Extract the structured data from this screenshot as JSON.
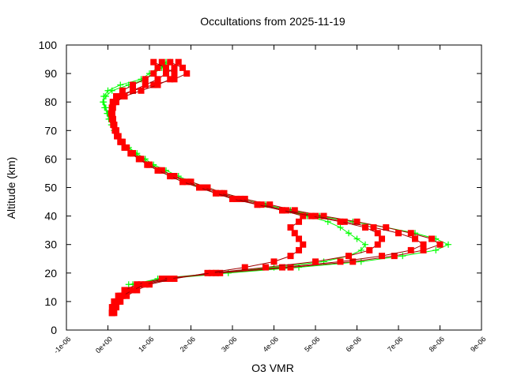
{
  "chart_data": {
    "type": "line",
    "title": "Occultations from 2025-11-19",
    "xlabel": "O3 VMR",
    "ylabel": "Altitude (km)",
    "xlim": [
      -1e-06,
      9e-06
    ],
    "ylim": [
      0,
      100
    ],
    "xticks": [
      "-1e-06",
      "0e+00",
      "1e-06",
      "2e-06",
      "3e-06",
      "4e-06",
      "5e-06",
      "6e-06",
      "7e-06",
      "8e-06",
      "9e-06"
    ],
    "yticks": [
      "0",
      "10",
      "20",
      "30",
      "40",
      "50",
      "60",
      "70",
      "80",
      "90",
      "100"
    ],
    "grid": false,
    "legend": "none",
    "altitude": [
      6,
      8,
      10,
      12,
      14,
      16,
      18,
      20,
      22,
      24,
      26,
      28,
      30,
      32,
      34,
      36,
      38,
      40,
      42,
      44,
      46,
      48,
      50,
      52,
      54,
      56,
      58,
      60,
      62,
      64,
      66,
      68,
      70,
      72,
      74,
      76,
      78,
      80,
      82,
      84,
      86,
      88,
      90,
      92,
      94
    ],
    "series": [
      {
        "color": "#00ff00",
        "marker": "plus",
        "profiles": [
          [
            null,
            null,
            null,
            null,
            null,
            5e-07,
            1.4e-06,
            2.9e-06,
            4.6e-06,
            6.1e-06,
            7.1e-06,
            7.9e-06,
            8.2e-06,
            7.9e-06,
            7.4e-06,
            6.7e-06,
            5.9e-06,
            5.1e-06,
            4.4e-06,
            3.8e-06,
            3.3e-06,
            2.8e-06,
            2.4e-06,
            2e-06,
            1.7e-06,
            1.4e-06,
            1.1e-06,
            9e-07,
            7e-07,
            5e-07,
            3.5e-07,
            2.5e-07,
            1.8e-07,
            1e-07,
            5e-08,
            0.0,
            -5e-08,
            -1e-07,
            -1e-07,
            0.0,
            3e-07,
            8e-07,
            1e-06,
            1.2e-06,
            1.5e-06
          ],
          [
            null,
            null,
            null,
            null,
            null,
            6e-07,
            1.2e-06,
            2.6e-06,
            4e-06,
            5.2e-06,
            5.8e-06,
            6.1e-06,
            6.2e-06,
            6e-06,
            5.8e-06,
            5.6e-06,
            5.3e-06,
            4.8e-06,
            4.2e-06,
            3.6e-06,
            3.1e-06,
            2.6e-06,
            2.2e-06,
            1.9e-06,
            1.6e-06,
            1.3e-06,
            1.05e-06,
            8.5e-07,
            6.5e-07,
            5e-07,
            3.5e-07,
            2.5e-07,
            1.5e-07,
            8e-08,
            2e-08,
            -2e-08,
            -8e-08,
            -1.2e-07,
            -5e-08,
            1e-07,
            5e-07,
            9e-07,
            1.1e-06,
            1.3e-06,
            1.4e-06
          ]
        ]
      },
      {
        "color": "#ff0000",
        "marker": "square",
        "profiles": [
          [
            1e-07,
            1.2e-07,
            2e-07,
            3e-07,
            5e-07,
            8e-07,
            1.4e-06,
            2.7e-06,
            4.4e-06,
            5.9e-06,
            6.9e-06,
            7.6e-06,
            8e-06,
            7.8e-06,
            7.3e-06,
            6.7e-06,
            6e-06,
            5.2e-06,
            4.5e-06,
            3.9e-06,
            3.3e-06,
            2.8e-06,
            2.4e-06,
            2e-06,
            1.6e-06,
            1.3e-06,
            1e-06,
            8e-07,
            6e-07,
            4.5e-07,
            3.5e-07,
            2.5e-07,
            2e-07,
            1.5e-07,
            1.2e-07,
            1e-07,
            1e-07,
            1.2e-07,
            2e-07,
            6e-07,
            1.1e-06,
            1.6e-06,
            1.9e-06,
            1.8e-06,
            1.5e-06
          ],
          [
            1e-07,
            1e-07,
            1.5e-07,
            2.5e-07,
            4e-07,
            7e-07,
            1.3e-06,
            2.6e-06,
            4.2e-06,
            5.6e-06,
            6.6e-06,
            7.3e-06,
            7.6e-06,
            7.4e-06,
            7e-06,
            6.4e-06,
            5.7e-06,
            5e-06,
            4.3e-06,
            3.7e-06,
            3.2e-06,
            2.7e-06,
            2.3e-06,
            1.9e-06,
            1.6e-06,
            1.3e-06,
            1e-06,
            8e-07,
            6e-07,
            4.5e-07,
            3.5e-07,
            2.5e-07,
            2e-07,
            1.5e-07,
            1.2e-07,
            1e-07,
            1e-07,
            1.2e-07,
            2e-07,
            3.5e-07,
            6e-07,
            9e-07,
            1.1e-06,
            1.2e-06,
            1.3e-06
          ],
          [
            1.5e-07,
            2e-07,
            3e-07,
            4.5e-07,
            7e-07,
            1e-06,
            1.6e-06,
            2.4e-06,
            3.3e-06,
            4e-06,
            4.4e-06,
            4.6e-06,
            4.7e-06,
            4.6e-06,
            4.5e-06,
            4.4e-06,
            4.6e-06,
            4.7e-06,
            4.2e-06,
            3.6e-06,
            3.1e-06,
            2.6e-06,
            2.2e-06,
            1.8e-06,
            1.5e-06,
            1.2e-06,
            9.5e-07,
            7.5e-07,
            5.5e-07,
            4e-07,
            3e-07,
            2.2e-07,
            1.7e-07,
            1.3e-07,
            1e-07,
            8e-08,
            1e-07,
            1.5e-07,
            3e-07,
            6e-07,
            9e-07,
            1.2e-06,
            1.4e-06,
            1.6e-06,
            1.7e-06
          ],
          [
            1e-07,
            1.5e-07,
            2.5e-07,
            3.5e-07,
            6e-07,
            9e-07,
            1.5e-06,
            2.5e-06,
            3.8e-06,
            5e-06,
            5.8e-06,
            6.3e-06,
            6.5e-06,
            6.6e-06,
            6.5e-06,
            6.2e-06,
            5.6e-06,
            4.9e-06,
            4.2e-06,
            3.6e-06,
            3e-06,
            2.6e-06,
            2.2e-06,
            1.8e-06,
            1.5e-06,
            1.2e-06,
            9.5e-07,
            7.5e-07,
            5.5e-07,
            4.2e-07,
            3.2e-07,
            2.4e-07,
            1.8e-07,
            1.4e-07,
            1.1e-07,
            1e-07,
            1.2e-07,
            2e-07,
            4e-07,
            8e-07,
            1.2e-06,
            1.5e-06,
            1.6e-06,
            1.4e-06,
            1.1e-06
          ]
        ]
      }
    ]
  }
}
